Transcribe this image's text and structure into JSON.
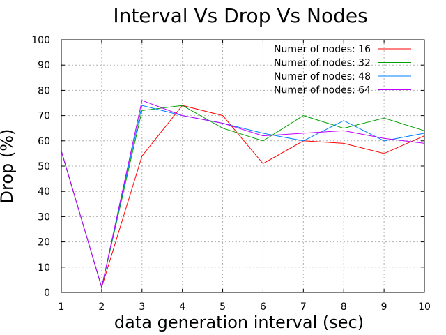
{
  "chart_data": {
    "type": "line",
    "title": "Interval Vs Drop Vs Nodes",
    "xlabel": "data generation interval (sec)",
    "ylabel": "Drop (%)",
    "x": [
      1,
      2,
      3,
      4,
      5,
      6,
      7,
      8,
      9,
      10
    ],
    "xlim": [
      1,
      10
    ],
    "ylim": [
      0,
      100
    ],
    "xticks": [
      "1",
      "2",
      "3",
      "4",
      "5",
      "6",
      "7",
      "8",
      "9",
      "10"
    ],
    "yticks": [
      "0",
      "10",
      "20",
      "30",
      "40",
      "50",
      "60",
      "70",
      "80",
      "90",
      "100"
    ],
    "grid": true,
    "legend_position": "top-right",
    "series": [
      {
        "name": "Numer of nodes: 16",
        "color": "#ff0000",
        "values": [
          56,
          2,
          54,
          74,
          70,
          51,
          60,
          59,
          55,
          62
        ]
      },
      {
        "name": "Numer of nodes: 32",
        "color": "#00a000",
        "values": [
          56,
          2,
          72,
          74,
          65,
          60,
          70,
          65,
          69,
          64
        ]
      },
      {
        "name": "Numer of nodes: 48",
        "color": "#0080ff",
        "values": [
          56,
          2,
          74,
          70,
          67,
          63,
          60,
          68,
          60,
          63
        ]
      },
      {
        "name": "Numer of nodes: 64",
        "color": "#c000ff",
        "values": [
          56,
          2,
          76,
          70,
          67,
          62,
          63,
          64,
          61,
          59
        ]
      }
    ]
  }
}
